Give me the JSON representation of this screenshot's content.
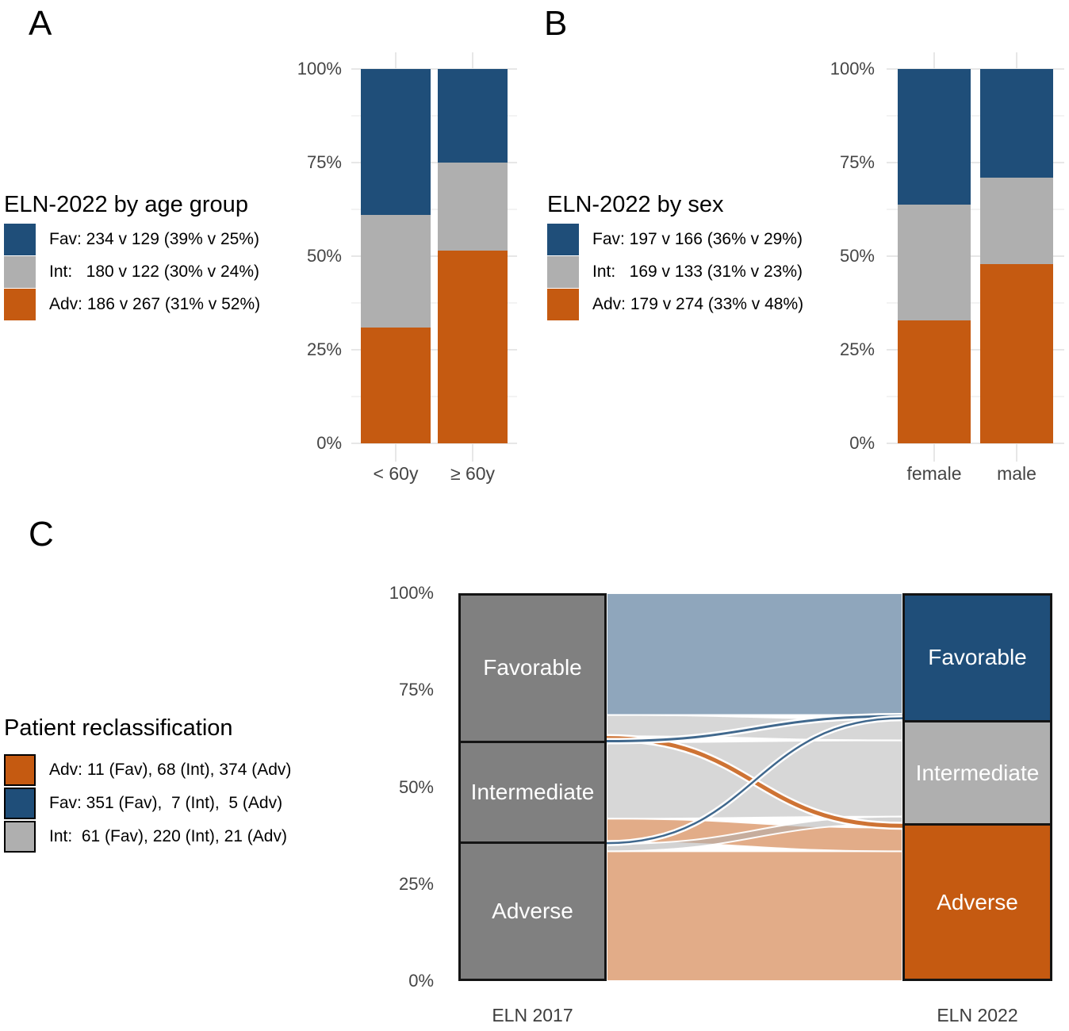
{
  "panels": {
    "a": "A",
    "b": "B",
    "c": "C"
  },
  "colors": {
    "fav": "#1F4E79",
    "int": "#AFAFAF",
    "adv": "#C55A11",
    "stratum_2017": "#808080",
    "flow_to_fav": "rgba(31,78,121,0.5)",
    "flow_to_int": "rgba(175,175,175,0.5)",
    "flow_to_adv": "rgba(197,90,17,0.5)"
  },
  "panel_a": {
    "legend_title": "ELN-2022 by age group",
    "legend": [
      {
        "name": "Fav",
        "swatch": "#1F4E79",
        "label": "Fav: 234 v 129 (39% v 25%)"
      },
      {
        "name": "Int",
        "swatch": "#AFAFAF",
        "label": "Int:   180 v 122 (30% v 24%)"
      },
      {
        "name": "Adv",
        "swatch": "#C55A11",
        "label": "Adv: 186 v 267 (31% v 52%)"
      }
    ]
  },
  "panel_b": {
    "legend_title": "ELN-2022 by sex",
    "legend": [
      {
        "name": "Fav",
        "swatch": "#1F4E79",
        "label": "Fav: 197 v 166 (36% v 29%)"
      },
      {
        "name": "Int",
        "swatch": "#AFAFAF",
        "label": "Int:   169 v 133 (31% v 23%)"
      },
      {
        "name": "Adv",
        "swatch": "#C55A11",
        "label": "Adv: 179 v 274 (33% v 48%)"
      }
    ]
  },
  "panel_c": {
    "legend_title": "Patient reclassification",
    "legend": [
      {
        "name": "Adv",
        "swatch": "#C55A11",
        "label": "Adv: 11 (Fav), 68 (Int), 374 (Adv)"
      },
      {
        "name": "Fav",
        "swatch": "#1F4E79",
        "label": "Fav: 351 (Fav),  7 (Int),  5 (Adv)"
      },
      {
        "name": "Int",
        "swatch": "#AFAFAF",
        "label": "Int:  61 (Fav), 220 (Int), 21 (Adv)"
      }
    ]
  },
  "chart_data": [
    {
      "type": "bar",
      "panel": "A",
      "stacked": true,
      "units": "percent",
      "title": "ELN-2022 by age group",
      "categories": [
        "< 60y",
        "≥ 60y"
      ],
      "series": [
        {
          "name": "Fav",
          "color": "#1F4E79",
          "counts": [
            234,
            129
          ],
          "pct": [
            39,
            25
          ]
        },
        {
          "name": "Int",
          "color": "#AFAFAF",
          "counts": [
            180,
            122
          ],
          "pct": [
            30,
            24
          ]
        },
        {
          "name": "Adv",
          "color": "#C55A11",
          "counts": [
            186,
            267
          ],
          "pct": [
            31,
            52
          ]
        }
      ],
      "yticks": [
        {
          "v": 0,
          "label": "0%"
        },
        {
          "v": 25,
          "label": "25%"
        },
        {
          "v": 50,
          "label": "50%"
        },
        {
          "v": 75,
          "label": "75%"
        },
        {
          "v": 100,
          "label": "100%"
        }
      ],
      "ylim": [
        0,
        100
      ],
      "grid": true,
      "legend_position": "left"
    },
    {
      "type": "bar",
      "panel": "B",
      "stacked": true,
      "units": "percent",
      "title": "ELN-2022 by sex",
      "categories": [
        "female",
        "male"
      ],
      "series": [
        {
          "name": "Fav",
          "color": "#1F4E79",
          "counts": [
            197,
            166
          ],
          "pct": [
            36,
            29
          ]
        },
        {
          "name": "Int",
          "color": "#AFAFAF",
          "counts": [
            169,
            133
          ],
          "pct": [
            31,
            23
          ]
        },
        {
          "name": "Adv",
          "color": "#C55A11",
          "counts": [
            179,
            274
          ],
          "pct": [
            33,
            48
          ]
        }
      ],
      "yticks": [
        {
          "v": 0,
          "label": "0%"
        },
        {
          "v": 25,
          "label": "25%"
        },
        {
          "v": 50,
          "label": "50%"
        },
        {
          "v": 75,
          "label": "75%"
        },
        {
          "v": 100,
          "label": "100%"
        }
      ],
      "ylim": [
        0,
        100
      ],
      "grid": true,
      "legend_position": "left"
    },
    {
      "type": "alluvial",
      "panel": "C",
      "title": "Patient reclassification",
      "axes": [
        "ELN 2017",
        "ELN 2022"
      ],
      "left_color": "#808080",
      "strata_left": [
        {
          "name": "Favorable",
          "total": 423
        },
        {
          "name": "Intermediate",
          "total": 295
        },
        {
          "name": "Adverse",
          "total": 400
        }
      ],
      "strata_right": [
        {
          "name": "Favorable",
          "total": 363,
          "color": "#1F4E79"
        },
        {
          "name": "Intermediate",
          "total": 302,
          "color": "#AFAFAF"
        },
        {
          "name": "Adverse",
          "total": 453,
          "color": "#C55A11"
        }
      ],
      "flows": [
        {
          "from": "Favorable",
          "to": "Favorable",
          "n": 351
        },
        {
          "from": "Favorable",
          "to": "Intermediate",
          "n": 61
        },
        {
          "from": "Favorable",
          "to": "Adverse",
          "n": 11
        },
        {
          "from": "Intermediate",
          "to": "Favorable",
          "n": 7
        },
        {
          "from": "Intermediate",
          "to": "Intermediate",
          "n": 220
        },
        {
          "from": "Intermediate",
          "to": "Adverse",
          "n": 68
        },
        {
          "from": "Adverse",
          "to": "Favorable",
          "n": 5
        },
        {
          "from": "Adverse",
          "to": "Intermediate",
          "n": 21
        },
        {
          "from": "Adverse",
          "to": "Adverse",
          "n": 374
        }
      ],
      "yticks": [
        {
          "v": 0,
          "label": "0%"
        },
        {
          "v": 25,
          "label": "25%"
        },
        {
          "v": 50,
          "label": "50%"
        },
        {
          "v": 75,
          "label": "75%"
        },
        {
          "v": 100,
          "label": "100%"
        }
      ]
    }
  ]
}
